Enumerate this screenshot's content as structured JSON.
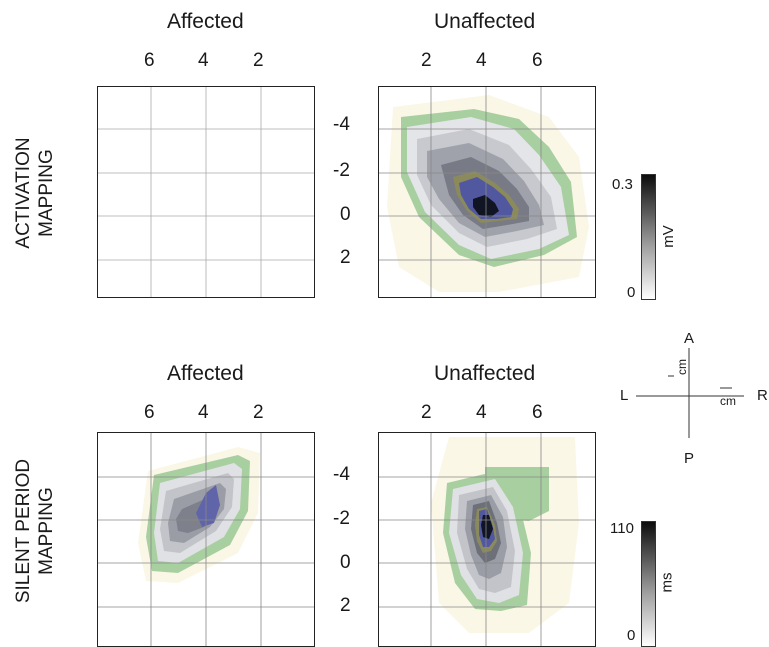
{
  "activation": {
    "row_label_line1": "ACTIVATION",
    "row_label_line2": "MAPPING",
    "affected": {
      "title": "Affected",
      "x_ticks": [
        "6",
        "4",
        "2"
      ]
    },
    "unaffected": {
      "title": "Unaffected",
      "x_ticks": [
        "2",
        "4",
        "6"
      ]
    },
    "y_ticks": [
      "-4",
      "-2",
      "0",
      "2"
    ],
    "colorbar": {
      "max": "0.3",
      "min": "0",
      "unit": "mV"
    }
  },
  "silent_period": {
    "row_label_line1": "SILENT PERIOD",
    "row_label_line2": "MAPPING",
    "affected": {
      "title": "Affected",
      "x_ticks": [
        "6",
        "4",
        "2"
      ]
    },
    "unaffected": {
      "title": "Unaffected",
      "x_ticks": [
        "2",
        "4",
        "6"
      ]
    },
    "y_ticks": [
      "-4",
      "-2",
      "0",
      "2"
    ],
    "colorbar": {
      "max": "110",
      "min": "0",
      "unit": "ms"
    }
  },
  "orientation": {
    "anterior": "A",
    "posterior": "P",
    "left": "L",
    "right": "R",
    "unit_vertical": "cm",
    "unit_horizontal": "cm"
  },
  "colors": {
    "contour_outer": "#fbf7e6",
    "contour_green": "#a8cfa0",
    "contour_gray_light": "#cfd1d6",
    "contour_gray_mid": "#9da0a8",
    "contour_gray_dark": "#6d7079",
    "contour_blue": "#5258a0",
    "contour_core": "#111422"
  }
}
